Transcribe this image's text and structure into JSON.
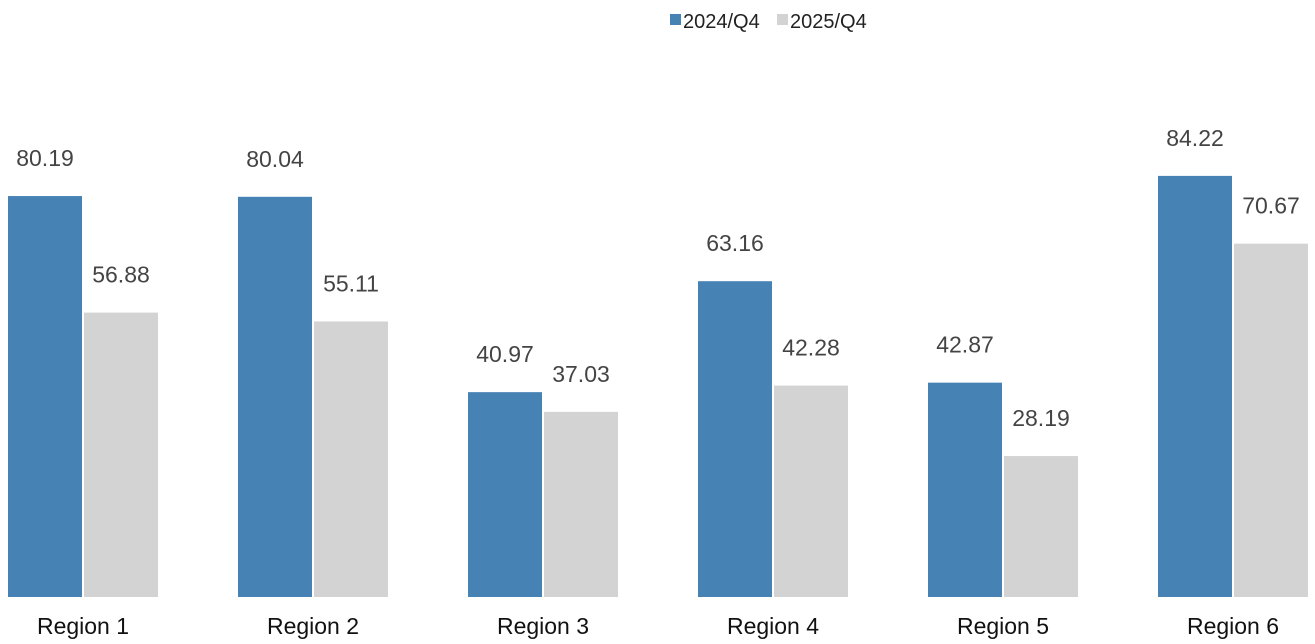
{
  "chart_data": {
    "type": "bar",
    "title": "",
    "xlabel": "",
    "ylabel": "",
    "categories": [
      "Region 1",
      "Region 2",
      "Region 3",
      "Region 4",
      "Region 5",
      "Region 6"
    ],
    "series": [
      {
        "name": "2024/Q4",
        "color": "#4682b4",
        "values": [
          80.19,
          80.04,
          40.97,
          63.16,
          42.87,
          84.22
        ]
      },
      {
        "name": "2025/Q4",
        "color": "#d3d3d3",
        "values": [
          56.88,
          55.11,
          37.03,
          42.28,
          28.19,
          70.67
        ]
      }
    ],
    "ylim": [
      0,
      100
    ],
    "grid": false,
    "legend": "top-center",
    "data_labels": true
  }
}
